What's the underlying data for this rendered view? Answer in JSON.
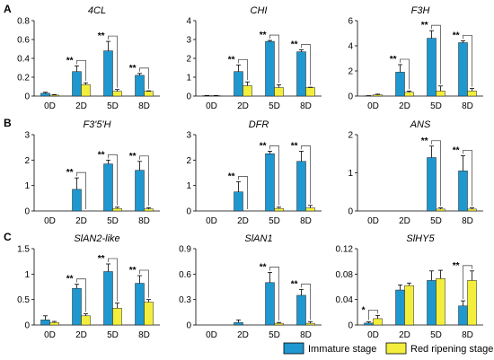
{
  "panel_labels": [
    "A",
    "B",
    "C"
  ],
  "colors": {
    "immature": "#1f97cf",
    "red_ripening": "#f3ee3b",
    "axis": "#000000"
  },
  "legend": {
    "items": [
      {
        "label": "Immature stage",
        "color": "#1f97cf"
      },
      {
        "label": "Red ripening stage",
        "color": "#f3ee3b"
      }
    ],
    "placement": "bottom-right"
  },
  "chart_data": [
    {
      "type": "bar",
      "panel": "A",
      "title": "4CL",
      "categories": [
        "0D",
        "2D",
        "5D",
        "8D"
      ],
      "ylim": [
        0,
        0.8
      ],
      "yticks": [
        "0",
        "0.2",
        "0.4",
        "0.6",
        "0.8"
      ],
      "ytick_values": [
        0,
        0.2,
        0.4,
        0.6,
        0.8
      ],
      "series": [
        {
          "values": [
            0.03,
            0.26,
            0.48,
            0.22
          ],
          "errors": [
            0.01,
            0.06,
            0.1,
            0.02
          ]
        },
        {
          "values": [
            0.01,
            0.12,
            0.05,
            0.05
          ],
          "errors": [
            0.005,
            0.02,
            0.02,
            0.005
          ]
        }
      ],
      "significance": [
        {
          "category": 1,
          "label": "**"
        },
        {
          "category": 2,
          "label": "**"
        },
        {
          "category": 3,
          "label": "**"
        }
      ]
    },
    {
      "type": "bar",
      "panel": "A",
      "title": "CHI",
      "categories": [
        "0D",
        "2D",
        "5D",
        "8D"
      ],
      "ylim": [
        0,
        4
      ],
      "yticks": [
        "0",
        "1",
        "2",
        "3",
        "4"
      ],
      "ytick_values": [
        0,
        1,
        2,
        3,
        4
      ],
      "series": [
        {
          "values": [
            0.02,
            1.3,
            2.9,
            2.35
          ],
          "errors": [
            0.01,
            0.35,
            0.05,
            0.1
          ]
        },
        {
          "values": [
            0.02,
            0.55,
            0.45,
            0.45
          ],
          "errors": [
            0.01,
            0.2,
            0.15,
            0.02
          ]
        }
      ],
      "significance": [
        {
          "category": 1,
          "label": "**"
        },
        {
          "category": 2,
          "label": "**"
        },
        {
          "category": 3,
          "label": "**"
        }
      ]
    },
    {
      "type": "bar",
      "panel": "A",
      "title": "F3H",
      "categories": [
        "0D",
        "2D",
        "5D",
        "8D"
      ],
      "ylim": [
        0,
        6
      ],
      "yticks": [
        "0",
        "2",
        "4",
        "6"
      ],
      "ytick_values": [
        0,
        2,
        4,
        6
      ],
      "series": [
        {
          "values": [
            0.02,
            1.9,
            4.6,
            4.25
          ],
          "errors": [
            0.01,
            0.6,
            0.6,
            0.15
          ]
        },
        {
          "values": [
            0.1,
            0.3,
            0.4,
            0.4
          ],
          "errors": [
            0.05,
            0.1,
            0.4,
            0.2
          ]
        }
      ],
      "significance": [
        {
          "category": 1,
          "label": "**"
        },
        {
          "category": 2,
          "label": "**"
        },
        {
          "category": 3,
          "label": "**"
        }
      ]
    },
    {
      "type": "bar",
      "panel": "B",
      "title": "F3'5'H",
      "categories": [
        "0D",
        "2D",
        "5D",
        "8D"
      ],
      "ylim": [
        0,
        3
      ],
      "yticks": [
        "0",
        "1",
        "2",
        "3"
      ],
      "ytick_values": [
        0,
        1,
        2,
        3
      ],
      "series": [
        {
          "values": [
            0.0,
            0.85,
            1.85,
            1.6
          ],
          "errors": [
            0.0,
            0.45,
            0.15,
            0.35
          ]
        },
        {
          "values": [
            0.0,
            0.0,
            0.1,
            0.08
          ],
          "errors": [
            0.0,
            0.0,
            0.05,
            0.05
          ]
        }
      ],
      "significance": [
        {
          "category": 1,
          "label": "**"
        },
        {
          "category": 2,
          "label": "**"
        },
        {
          "category": 3,
          "label": "**"
        }
      ]
    },
    {
      "type": "bar",
      "panel": "B",
      "title": "DFR",
      "categories": [
        "0D",
        "2D",
        "5D",
        "8D"
      ],
      "ylim": [
        0,
        3
      ],
      "yticks": [
        "0",
        "1",
        "2",
        "3"
      ],
      "ytick_values": [
        0,
        1,
        2,
        3
      ],
      "series": [
        {
          "values": [
            0.0,
            0.75,
            2.25,
            1.95
          ],
          "errors": [
            0.0,
            0.4,
            0.1,
            0.4
          ]
        },
        {
          "values": [
            0.0,
            0.0,
            0.1,
            0.12
          ],
          "errors": [
            0.0,
            0.0,
            0.05,
            0.1
          ]
        }
      ],
      "significance": [
        {
          "category": 1,
          "label": "**"
        },
        {
          "category": 2,
          "label": "**"
        },
        {
          "category": 3,
          "label": "**"
        }
      ]
    },
    {
      "type": "bar",
      "panel": "B",
      "title": "ANS",
      "categories": [
        "0D",
        "2D",
        "5D",
        "8D"
      ],
      "ylim": [
        0,
        2
      ],
      "yticks": [
        "0",
        "1",
        "2"
      ],
      "ytick_values": [
        0,
        1,
        2
      ],
      "series": [
        {
          "values": [
            0.0,
            0.0,
            1.4,
            1.05
          ],
          "errors": [
            0.0,
            0.0,
            0.3,
            0.4
          ]
        },
        {
          "values": [
            0.0,
            0.0,
            0.05,
            0.05
          ],
          "errors": [
            0.0,
            0.0,
            0.03,
            0.03
          ]
        }
      ],
      "significance": [
        {
          "category": 2,
          "label": "**"
        },
        {
          "category": 3,
          "label": "**"
        }
      ]
    },
    {
      "type": "bar",
      "panel": "C",
      "title": "SlAN2-like",
      "categories": [
        "0D",
        "2D",
        "5D",
        "8D"
      ],
      "ylim": [
        0,
        1.5
      ],
      "yticks": [
        "0",
        "0.5",
        "1",
        "1.5"
      ],
      "ytick_values": [
        0,
        0.5,
        1,
        1.5
      ],
      "series": [
        {
          "values": [
            0.1,
            0.72,
            1.05,
            0.82
          ],
          "errors": [
            0.08,
            0.08,
            0.15,
            0.15
          ]
        },
        {
          "values": [
            0.05,
            0.18,
            0.33,
            0.45
          ],
          "errors": [
            0.02,
            0.04,
            0.1,
            0.05
          ]
        }
      ],
      "significance": [
        {
          "category": 1,
          "label": "**"
        },
        {
          "category": 2,
          "label": "**"
        },
        {
          "category": 3,
          "label": "**"
        }
      ]
    },
    {
      "type": "bar",
      "panel": "C",
      "title": "SlAN1",
      "categories": [
        "0D",
        "2D",
        "5D",
        "8D"
      ],
      "ylim": [
        0,
        0.9
      ],
      "yticks": [
        "0",
        "0.3",
        "0.6",
        "0.9"
      ],
      "ytick_values": [
        0,
        0.3,
        0.6,
        0.9
      ],
      "series": [
        {
          "values": [
            0.0,
            0.03,
            0.5,
            0.35
          ],
          "errors": [
            0.0,
            0.03,
            0.12,
            0.07
          ]
        },
        {
          "values": [
            0.0,
            0.0,
            0.02,
            0.02
          ],
          "errors": [
            0.0,
            0.0,
            0.01,
            0.02
          ]
        }
      ],
      "significance": [
        {
          "category": 2,
          "label": "**"
        },
        {
          "category": 3,
          "label": "**"
        }
      ]
    },
    {
      "type": "bar",
      "panel": "C",
      "title": "SlHY5",
      "categories": [
        "0D",
        "2D",
        "5D",
        "8D"
      ],
      "ylim": [
        0,
        0.12
      ],
      "yticks": [
        "0",
        "0.04",
        "0.08",
        "0.12"
      ],
      "ytick_values": [
        0,
        0.04,
        0.08,
        0.12
      ],
      "series": [
        {
          "values": [
            0.003,
            0.055,
            0.07,
            0.03
          ],
          "errors": [
            0.002,
            0.008,
            0.015,
            0.008
          ]
        },
        {
          "values": [
            0.01,
            0.062,
            0.073,
            0.07
          ],
          "errors": [
            0.005,
            0.004,
            0.013,
            0.015
          ]
        }
      ],
      "significance": [
        {
          "category": 0,
          "label": "*"
        },
        {
          "category": 3,
          "label": "**"
        }
      ]
    }
  ]
}
